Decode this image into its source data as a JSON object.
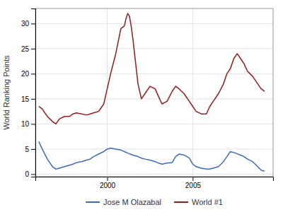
{
  "chart_data": {
    "type": "line",
    "ylabel": "World Ranking Points",
    "series": [
      {
        "name": "Jose M Olazabal",
        "color": "#3b6bc7",
        "x": [
          1996.0,
          1996.2,
          1996.5,
          1996.8,
          1997.0,
          1997.2,
          1997.5,
          1997.8,
          1998.0,
          1998.2,
          1998.5,
          1998.8,
          1999.0,
          1999.2,
          1999.5,
          1999.8,
          2000.0,
          2000.2,
          2000.5,
          2000.8,
          2001.0,
          2001.2,
          2001.5,
          2001.8,
          2002.0,
          2002.2,
          2002.5,
          2002.8,
          2003.0,
          2003.2,
          2003.5,
          2003.8,
          2004.0,
          2004.2,
          2004.5,
          2004.8,
          2005.0,
          2005.2,
          2005.5,
          2005.8,
          2006.0,
          2006.2,
          2006.5,
          2006.8,
          2007.0,
          2007.2,
          2007.5,
          2007.8,
          2008.0,
          2008.2,
          2008.5,
          2008.8,
          2009.0,
          2009.2
        ],
        "values": [
          6.5,
          5.0,
          3.0,
          1.5,
          1.0,
          1.2,
          1.5,
          1.8,
          2.0,
          2.3,
          2.5,
          2.8,
          3.0,
          3.5,
          4.0,
          4.5,
          5.0,
          5.2,
          5.0,
          4.8,
          4.5,
          4.2,
          3.8,
          3.5,
          3.2,
          3.0,
          2.8,
          2.5,
          2.2,
          2.0,
          2.2,
          2.3,
          3.5,
          4.0,
          3.8,
          3.2,
          2.0,
          1.5,
          1.2,
          1.0,
          1.0,
          1.2,
          1.5,
          2.5,
          3.5,
          4.5,
          4.2,
          3.8,
          3.5,
          3.0,
          2.5,
          1.5,
          0.8,
          0.6
        ]
      },
      {
        "name": "World #1",
        "color": "#9b1a1a",
        "x": [
          1996.0,
          1996.2,
          1996.5,
          1996.8,
          1997.0,
          1997.2,
          1997.5,
          1997.8,
          1998.0,
          1998.2,
          1998.5,
          1998.8,
          1999.0,
          1999.2,
          1999.5,
          1999.8,
          2000.0,
          2000.2,
          2000.5,
          2000.8,
          2001.0,
          2001.1,
          2001.2,
          2001.3,
          2001.4,
          2001.5,
          2001.8,
          2002.0,
          2002.2,
          2002.5,
          2002.8,
          2003.0,
          2003.2,
          2003.5,
          2003.8,
          2004.0,
          2004.2,
          2004.5,
          2004.8,
          2005.0,
          2005.2,
          2005.5,
          2005.8,
          2006.0,
          2006.2,
          2006.5,
          2006.8,
          2007.0,
          2007.2,
          2007.4,
          2007.6,
          2007.8,
          2008.0,
          2008.2,
          2008.5,
          2008.8,
          2009.0,
          2009.2
        ],
        "values": [
          13.5,
          13.0,
          11.5,
          10.5,
          10.0,
          11.0,
          11.5,
          11.5,
          12.0,
          12.2,
          12.0,
          11.8,
          12.0,
          12.2,
          12.5,
          14.0,
          17.0,
          20.0,
          24.0,
          29.0,
          29.5,
          31.0,
          32.0,
          31.5,
          29.5,
          27.0,
          18.0,
          15.0,
          16.0,
          17.5,
          17.0,
          15.5,
          14.0,
          14.5,
          16.5,
          17.5,
          17.0,
          16.0,
          14.5,
          13.5,
          12.5,
          12.0,
          12.0,
          13.5,
          14.5,
          16.0,
          18.0,
          20.0,
          21.0,
          23.0,
          24.0,
          23.0,
          22.0,
          20.5,
          19.5,
          18.0,
          17.0,
          16.5
        ]
      }
    ],
    "xlim": [
      1995.8,
      2009.7
    ],
    "xticks": [
      2000,
      2005
    ],
    "ylim": [
      -0.5,
      33
    ],
    "yticks": [
      0,
      5,
      10,
      15,
      20,
      25,
      30
    ],
    "grid": true,
    "legend": "bottom"
  }
}
